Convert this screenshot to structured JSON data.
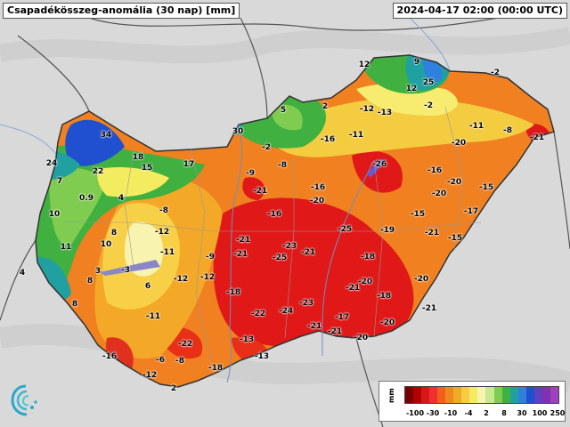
{
  "title": "Csapadékösszeg-anomália (30 nap) [mm]",
  "timestamp": "2024-04-17 02:00 (00:00 UTC)",
  "colors": {
    "background": "#d9d9d9",
    "country_fill_base": "#f08020",
    "strong_deficit": "#e01818",
    "near_normal": "#f4f070",
    "surplus_green": "#40b040",
    "surplus_blue": "#3060e0",
    "lake": "#5c8ee0"
  },
  "station_values": [
    {
      "id": "s1",
      "label": "34"
    },
    {
      "id": "s2",
      "label": "24"
    },
    {
      "id": "s3",
      "label": "22"
    },
    {
      "id": "s4",
      "label": "18"
    },
    {
      "id": "s5",
      "label": "15"
    },
    {
      "id": "s6",
      "label": "17"
    },
    {
      "id": "s7",
      "label": "7"
    },
    {
      "id": "s8",
      "label": "0.9"
    },
    {
      "id": "s9",
      "label": "4"
    },
    {
      "id": "s10",
      "label": "10"
    },
    {
      "id": "s11",
      "label": "8"
    },
    {
      "id": "s12",
      "label": "10"
    },
    {
      "id": "s13",
      "label": "11"
    },
    {
      "id": "s14",
      "label": "4"
    },
    {
      "id": "s15",
      "label": "3"
    },
    {
      "id": "s16",
      "label": "8"
    },
    {
      "id": "s17",
      "label": "-3"
    },
    {
      "id": "s18",
      "label": "6"
    },
    {
      "id": "s19",
      "label": "8"
    },
    {
      "id": "s20",
      "label": "-8"
    },
    {
      "id": "s21",
      "label": "-12"
    },
    {
      "id": "s22",
      "label": "-11"
    },
    {
      "id": "s23",
      "label": "-9"
    },
    {
      "id": "s24",
      "label": "-12"
    },
    {
      "id": "s25",
      "label": "-12"
    },
    {
      "id": "s26",
      "label": "-11"
    },
    {
      "id": "s27",
      "label": "-22"
    },
    {
      "id": "s28",
      "label": "-16"
    },
    {
      "id": "s29",
      "label": "-6"
    },
    {
      "id": "s30",
      "label": "-8"
    },
    {
      "id": "s31",
      "label": "-12"
    },
    {
      "id": "s32",
      "label": "2"
    },
    {
      "id": "s33",
      "label": "-18"
    },
    {
      "id": "s34",
      "label": "-13"
    },
    {
      "id": "s35",
      "label": "-13"
    },
    {
      "id": "s36",
      "label": "-22"
    },
    {
      "id": "s37",
      "label": "-18"
    },
    {
      "id": "s38",
      "label": "-21"
    },
    {
      "id": "s39",
      "label": "-21"
    },
    {
      "id": "s40",
      "label": "-25"
    },
    {
      "id": "s41",
      "label": "-23"
    },
    {
      "id": "s42",
      "label": "-21"
    },
    {
      "id": "s43",
      "label": "-24"
    },
    {
      "id": "s44",
      "label": "-23"
    },
    {
      "id": "s45",
      "label": "-21"
    },
    {
      "id": "s46",
      "label": "-17"
    },
    {
      "id": "s47",
      "label": "-21"
    },
    {
      "id": "s48",
      "label": "-20"
    },
    {
      "id": "s49",
      "label": "-21"
    },
    {
      "id": "s50",
      "label": "-16"
    },
    {
      "id": "s51",
      "label": "-9"
    },
    {
      "id": "s52",
      "label": "-21"
    },
    {
      "id": "s53",
      "label": "-2"
    },
    {
      "id": "s54",
      "label": "-8"
    },
    {
      "id": "s55",
      "label": "30"
    },
    {
      "id": "s56",
      "label": "5"
    },
    {
      "id": "s57",
      "label": "2"
    },
    {
      "id": "s58",
      "label": "-16"
    },
    {
      "id": "s59",
      "label": "-11"
    },
    {
      "id": "s60",
      "label": "-16"
    },
    {
      "id": "s61",
      "label": "-20"
    },
    {
      "id": "s62",
      "label": "-25"
    },
    {
      "id": "s63",
      "label": "-18"
    },
    {
      "id": "s64",
      "label": "-20"
    },
    {
      "id": "s65",
      "label": "-18"
    },
    {
      "id": "s66",
      "label": "-20"
    },
    {
      "id": "s67",
      "label": "-19"
    },
    {
      "id": "s68",
      "label": "-15"
    },
    {
      "id": "s69",
      "label": "-21"
    },
    {
      "id": "s70",
      "label": "-20"
    },
    {
      "id": "s71",
      "label": "-26"
    },
    {
      "id": "s72",
      "label": "-16"
    },
    {
      "id": "s73",
      "label": "-20"
    },
    {
      "id": "s74",
      "label": "-20"
    },
    {
      "id": "s75",
      "label": "-17"
    },
    {
      "id": "s76",
      "label": "-15"
    },
    {
      "id": "s77",
      "label": "-15"
    },
    {
      "id": "s78",
      "label": "-20"
    },
    {
      "id": "s79",
      "label": "-11"
    },
    {
      "id": "s80",
      "label": "-8"
    },
    {
      "id": "s81",
      "label": "-21"
    },
    {
      "id": "s82",
      "label": "-12"
    },
    {
      "id": "s83",
      "label": "-13"
    },
    {
      "id": "s84",
      "label": "-2"
    },
    {
      "id": "s85",
      "label": "12"
    },
    {
      "id": "s86",
      "label": "9"
    },
    {
      "id": "s87",
      "label": "12"
    },
    {
      "id": "s88",
      "label": "25"
    },
    {
      "id": "s89",
      "label": "-2"
    },
    {
      "id": "s90",
      "label": "-21"
    }
  ],
  "legend": {
    "unit": "mm",
    "colors": [
      "#7a0000",
      "#b00000",
      "#d81818",
      "#f03030",
      "#f06018",
      "#f08820",
      "#f4a828",
      "#f8cc40",
      "#f4ec60",
      "#f8f4b0",
      "#c8e890",
      "#80cc50",
      "#40b040",
      "#20a0a0",
      "#3080e0",
      "#2050d0",
      "#6040c0",
      "#8030b0",
      "#a040c0"
    ],
    "ticks": [
      "-100",
      "-30",
      "-10",
      "-4",
      "2",
      "8",
      "30",
      "100",
      "250"
    ]
  }
}
